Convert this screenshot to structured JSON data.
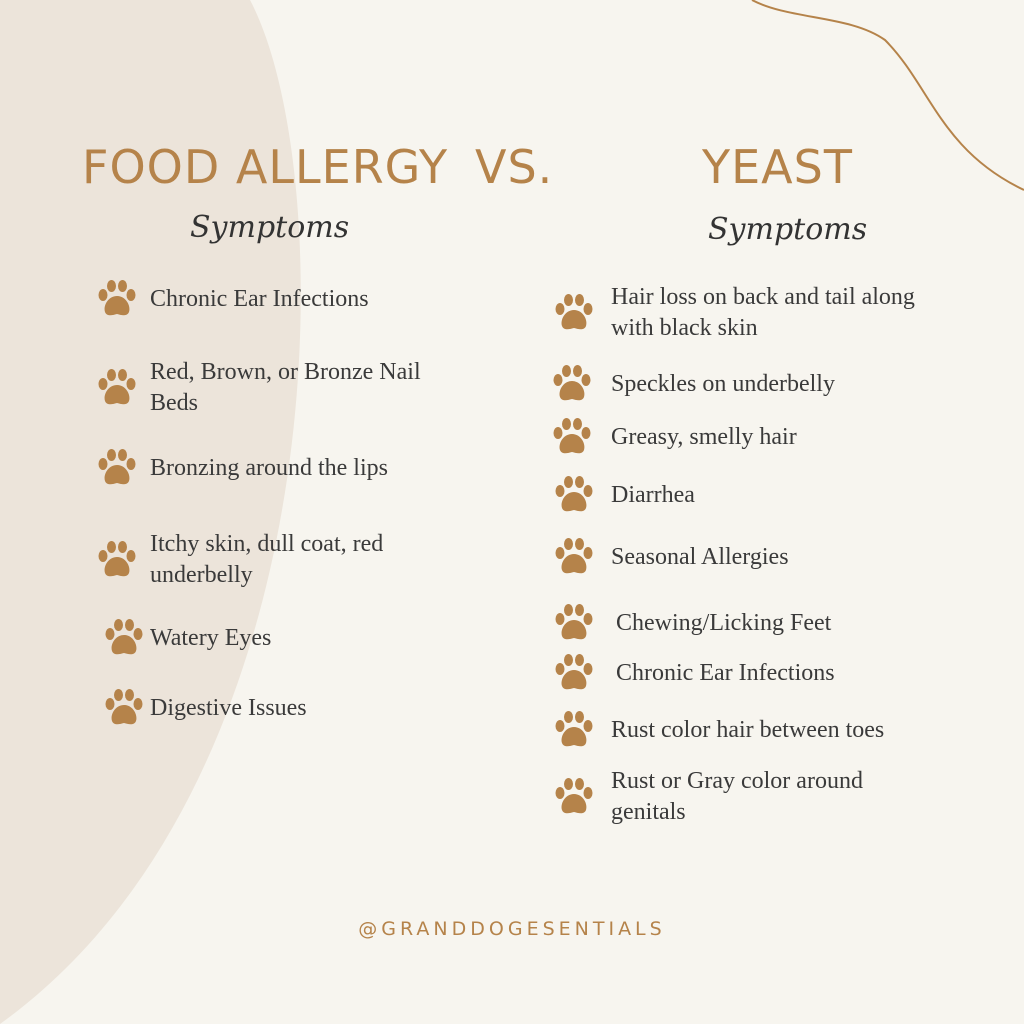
{
  "colors": {
    "accent": "#b5834a",
    "background": "#f7f5ef",
    "circle": "#ece4da",
    "text": "#3a3a3a"
  },
  "header": {
    "left_title": "FOOD ALLERGY",
    "vs": "VS.",
    "right_title": "YEAST",
    "left_subtitle": "Symptoms",
    "right_subtitle": "Symptoms"
  },
  "food_allergy": {
    "items": [
      {
        "lines": [
          "Chronic Ear Infections"
        ],
        "icon": "paw-icon"
      },
      {
        "lines": [
          "Red, Brown, or Bronze Nail",
          "Beds"
        ],
        "icon": "paw-icon"
      },
      {
        "lines": [
          "Bronzing around the lips"
        ],
        "icon": "paw-icon"
      },
      {
        "lines": [
          "Itchy skin, dull coat, red",
          "underbelly"
        ],
        "icon": "paw-icon"
      },
      {
        "lines": [
          "Watery Eyes"
        ],
        "icon": "paw-icon"
      },
      {
        "lines": [
          "Digestive Issues"
        ],
        "icon": "paw-icon"
      }
    ]
  },
  "yeast": {
    "items": [
      {
        "lines": [
          "Hair loss on back and tail  along",
          "with black skin"
        ],
        "icon": "paw-icon"
      },
      {
        "lines": [
          "Speckles on underbelly"
        ],
        "icon": "paw-icon"
      },
      {
        "lines": [
          "Greasy, smelly hair"
        ],
        "icon": "paw-icon"
      },
      {
        "lines": [
          "Diarrhea"
        ],
        "icon": "paw-icon"
      },
      {
        "lines": [
          "Seasonal Allergies"
        ],
        "icon": "paw-icon"
      },
      {
        "lines": [
          "Chewing/Licking Feet"
        ],
        "icon": "paw-icon"
      },
      {
        "lines": [
          "Chronic Ear Infections"
        ],
        "icon": "paw-icon"
      },
      {
        "lines": [
          "Rust color hair between toes"
        ],
        "icon": "paw-icon"
      },
      {
        "lines": [
          "Rust or Gray color around",
          "genitals"
        ],
        "icon": "paw-icon"
      }
    ]
  },
  "footer": {
    "handle": "@GRANDDOGESENTIALS"
  }
}
